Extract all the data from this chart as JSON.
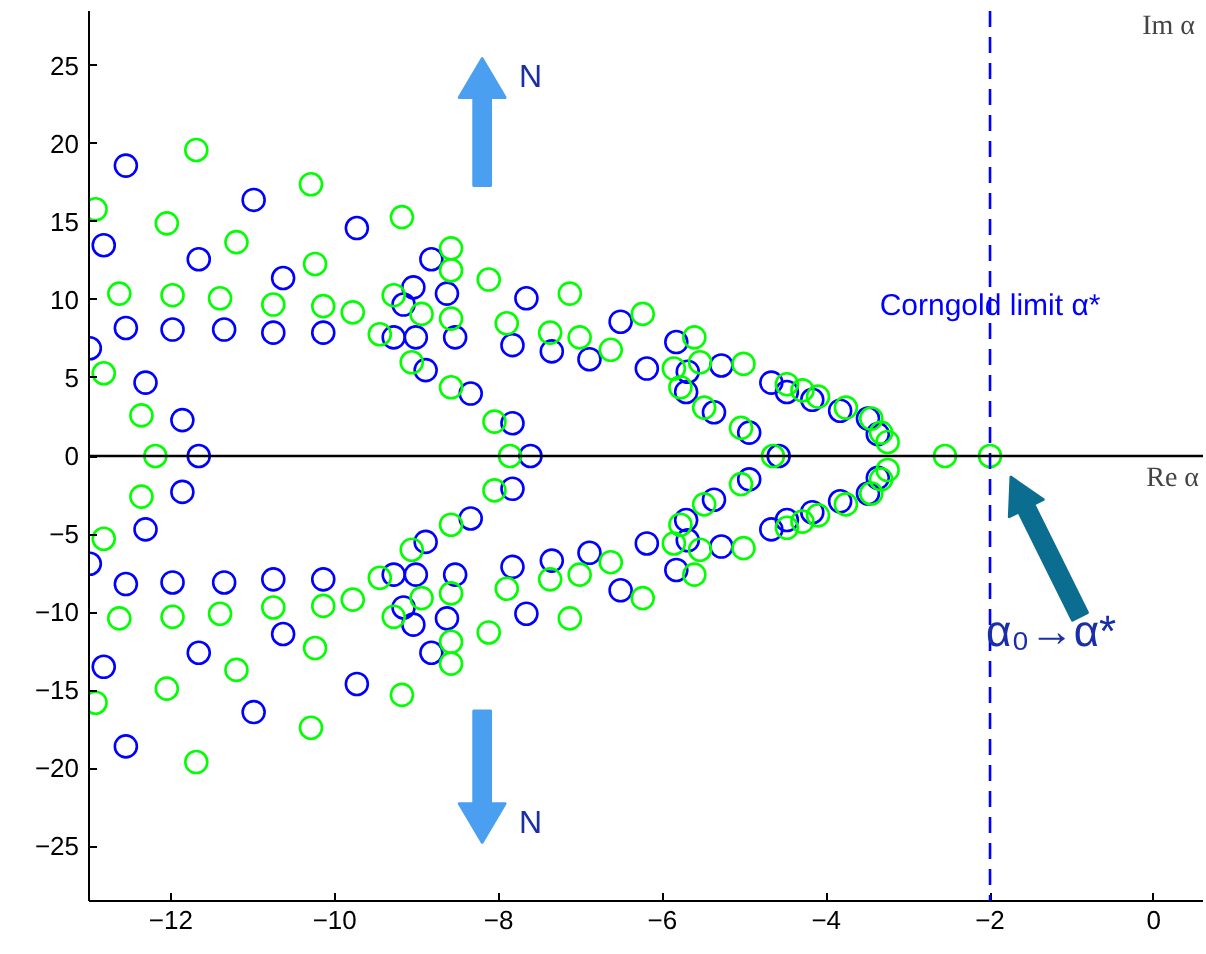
{
  "chart_data": {
    "type": "scatter",
    "xlabel": "Re α",
    "ylabel": "Im α",
    "marker": "circle",
    "grid": false,
    "xlim": [
      -13,
      0.6
    ],
    "xticks": [
      -12,
      -10,
      -8,
      -6,
      -4,
      -2,
      0
    ],
    "ylim": [
      -28.5,
      28.5
    ],
    "yticks": [
      -25,
      -20,
      -15,
      -10,
      -5,
      0,
      5,
      10,
      15,
      20,
      25
    ],
    "ref_lines": [
      {
        "axis": "x",
        "value": -2,
        "label": "Corngold limit α*",
        "color": "#0000ff",
        "line_style": "dashed"
      },
      {
        "axis": "y",
        "value": 0,
        "color": "#000000",
        "line_style": "solid"
      }
    ],
    "annotations": [
      "N",
      "N",
      "α₀→α*"
    ],
    "series": [
      {
        "color": "#0000ff",
        "x": [
          -12.55,
          -12.82,
          -12.99,
          -12.55,
          -12.31,
          -11.86,
          -11.98,
          -11.66,
          -11.35,
          -10.99,
          -10.63,
          -10.75,
          -10.14,
          -9.73,
          -9.16,
          -9.04,
          -9.28,
          -9.01,
          -8.89,
          -8.82,
          -8.63,
          -8.53,
          -7.66,
          -7.83,
          -7.35,
          -6.89,
          -6.51,
          -5.83,
          -6.19,
          -5.69,
          -5.28,
          -5.71,
          -5.37,
          -4.67,
          -4.48,
          -8.34,
          -7.83,
          -4.94,
          -4.17,
          -3.83,
          -3.49,
          -3.37,
          -12.55,
          -12.82,
          -12.99,
          -12.55,
          -12.31,
          -11.86,
          -11.98,
          -11.66,
          -11.35,
          -10.99,
          -10.63,
          -10.75,
          -10.14,
          -9.73,
          -9.16,
          -9.04,
          -9.28,
          -9.01,
          -8.89,
          -8.82,
          -8.63,
          -8.53,
          -7.66,
          -7.83,
          -7.35,
          -6.89,
          -6.51,
          -5.83,
          -6.19,
          -5.69,
          -5.28,
          -5.71,
          -5.37,
          -4.67,
          -4.48,
          -8.34,
          -7.83,
          -4.94,
          -4.17,
          -3.83,
          -3.49,
          -3.37,
          -11.66,
          -7.61,
          -4.58
        ],
        "values": [
          18.6,
          13.5,
          6.9,
          8.2,
          4.7,
          2.3,
          8.1,
          12.6,
          8.1,
          16.4,
          11.4,
          7.9,
          7.9,
          14.6,
          9.7,
          10.8,
          7.6,
          7.6,
          5.5,
          12.6,
          10.4,
          7.6,
          10.1,
          7.1,
          6.7,
          6.2,
          8.6,
          7.3,
          5.6,
          5.4,
          5.8,
          4.1,
          2.8,
          4.7,
          4.1,
          4.0,
          2.1,
          1.5,
          3.6,
          2.9,
          2.4,
          1.4,
          -18.6,
          -13.5,
          -6.9,
          -8.2,
          -4.7,
          -2.3,
          -8.1,
          -12.6,
          -8.1,
          -16.4,
          -11.4,
          -7.9,
          -7.9,
          -14.6,
          -9.7,
          -10.8,
          -7.6,
          -7.6,
          -5.5,
          -12.6,
          -10.4,
          -7.6,
          -10.1,
          -7.1,
          -6.7,
          -6.2,
          -8.6,
          -7.3,
          -5.6,
          -5.4,
          -5.8,
          -4.1,
          -2.8,
          -4.7,
          -4.1,
          -4.0,
          -2.1,
          -1.5,
          -3.6,
          -2.9,
          -2.4,
          -1.4,
          0,
          0,
          0
        ]
      },
      {
        "color": "#00ff00",
        "x": [
          -11.69,
          -12.92,
          -12.05,
          -11.2,
          -10.29,
          -9.18,
          -10.24,
          -12.63,
          -11.98,
          -11.4,
          -10.75,
          -10.14,
          -9.78,
          -9.45,
          -9.28,
          -8.94,
          -9.06,
          -12.82,
          -12.36,
          -8.58,
          -8.58,
          -8.58,
          -8.58,
          -8.12,
          -7.13,
          -7.9,
          -7.37,
          -7.01,
          -6.63,
          -6.24,
          -5.61,
          -5.54,
          -5.01,
          -5.86,
          -5.78,
          -8.05,
          -5.49,
          -5.04,
          -4.48,
          -4.29,
          -4.1,
          -3.76,
          -3.45,
          -3.33,
          -3.25,
          -11.69,
          -12.92,
          -12.05,
          -11.2,
          -10.29,
          -9.18,
          -10.24,
          -12.63,
          -11.98,
          -11.4,
          -10.75,
          -10.14,
          -9.78,
          -9.45,
          -9.28,
          -8.94,
          -9.06,
          -12.82,
          -12.36,
          -8.58,
          -8.58,
          -8.58,
          -8.58,
          -8.12,
          -7.13,
          -7.9,
          -7.37,
          -7.01,
          -6.63,
          -6.24,
          -5.61,
          -5.54,
          -5.01,
          -5.86,
          -5.78,
          -8.05,
          -5.49,
          -5.04,
          -4.48,
          -4.29,
          -4.1,
          -3.76,
          -3.45,
          -3.33,
          -3.25,
          -12.19,
          -7.86,
          -4.65,
          -2.55,
          -2.0
        ],
        "values": [
          19.6,
          15.8,
          14.9,
          13.7,
          17.4,
          15.3,
          12.3,
          10.4,
          10.3,
          10.1,
          9.7,
          9.6,
          9.2,
          7.8,
          10.3,
          9.1,
          6.0,
          5.3,
          2.6,
          13.3,
          11.9,
          8.8,
          4.4,
          11.3,
          10.4,
          8.5,
          7.9,
          7.6,
          6.8,
          9.1,
          7.6,
          6.0,
          5.9,
          5.6,
          4.4,
          2.2,
          3.1,
          1.8,
          4.6,
          4.2,
          3.8,
          3.1,
          2.4,
          1.5,
          0.9,
          -19.6,
          -15.8,
          -14.9,
          -13.7,
          -17.4,
          -15.3,
          -12.3,
          -10.4,
          -10.3,
          -10.1,
          -9.7,
          -9.6,
          -9.2,
          -7.8,
          -10.3,
          -9.1,
          -6.0,
          -5.3,
          -2.6,
          -13.3,
          -11.9,
          -8.8,
          -4.4,
          -11.3,
          -10.4,
          -8.5,
          -7.9,
          -7.6,
          -6.8,
          -9.1,
          -7.6,
          -6.0,
          -5.9,
          -5.6,
          -4.4,
          -2.2,
          -3.1,
          -1.8,
          -4.6,
          -4.2,
          -3.8,
          -3.1,
          -2.4,
          -1.5,
          -0.9,
          0,
          0,
          0,
          0,
          0
        ]
      }
    ]
  }
}
